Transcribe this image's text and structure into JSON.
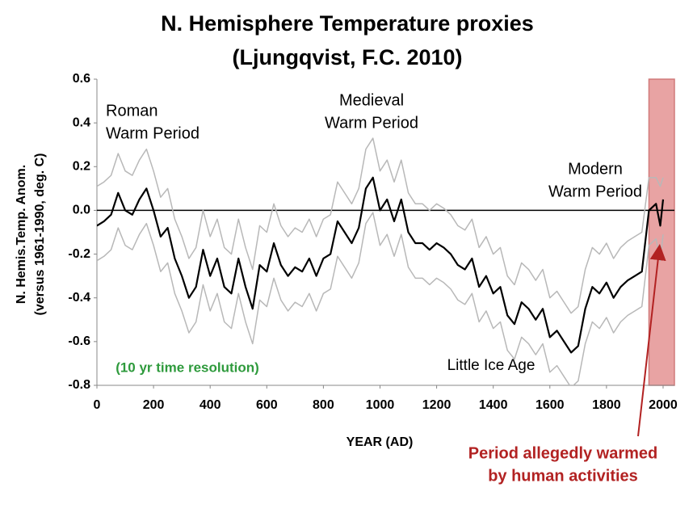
{
  "chart_data": {
    "type": "line",
    "title": [
      "N. Hemisphere Temperature proxies",
      "(Ljungqvist, F.C.  2010)"
    ],
    "x_label": "YEAR (AD)",
    "y_label": [
      "N. Hemis.Temp. Anom.",
      "(versus 1961-1990, deg. C)"
    ],
    "x": [
      0,
      25,
      50,
      75,
      100,
      125,
      150,
      175,
      200,
      225,
      250,
      275,
      300,
      325,
      350,
      375,
      400,
      425,
      450,
      475,
      500,
      525,
      550,
      575,
      600,
      625,
      650,
      675,
      700,
      725,
      750,
      775,
      800,
      825,
      850,
      875,
      900,
      925,
      950,
      975,
      1000,
      1025,
      1050,
      1075,
      1100,
      1125,
      1150,
      1175,
      1200,
      1225,
      1250,
      1275,
      1300,
      1325,
      1350,
      1375,
      1400,
      1425,
      1450,
      1475,
      1500,
      1525,
      1550,
      1575,
      1600,
      1625,
      1650,
      1675,
      1700,
      1725,
      1750,
      1775,
      1800,
      1825,
      1850,
      1875,
      1900,
      1925,
      1950,
      1975,
      1990,
      2000
    ],
    "series": [
      {
        "color": "#b8b8b8",
        "values": [
          0.11,
          0.13,
          0.16,
          0.26,
          0.18,
          0.16,
          0.23,
          0.28,
          0.18,
          0.06,
          0.1,
          -0.04,
          -0.12,
          -0.22,
          -0.17,
          0.0,
          -0.12,
          -0.04,
          -0.17,
          -0.2,
          -0.04,
          -0.17,
          -0.27,
          -0.07,
          -0.1,
          0.03,
          -0.07,
          -0.12,
          -0.08,
          -0.1,
          -0.04,
          -0.12,
          -0.04,
          -0.02,
          0.13,
          0.08,
          0.03,
          0.1,
          0.28,
          0.33,
          0.18,
          0.23,
          0.13,
          0.23,
          0.08,
          0.03,
          0.03,
          0.0,
          0.03,
          0.01,
          -0.02,
          -0.07,
          -0.09,
          -0.04,
          -0.17,
          -0.12,
          -0.2,
          -0.17,
          -0.3,
          -0.34,
          -0.24,
          -0.27,
          -0.32,
          -0.27,
          -0.4,
          -0.37,
          -0.42,
          -0.47,
          -0.44,
          -0.27,
          -0.17,
          -0.2,
          -0.15,
          -0.22,
          -0.17,
          -0.14,
          -0.12,
          -0.1,
          0.15,
          0.15,
          0.11,
          0.15
        ]
      },
      {
        "color": "#b8b8b8",
        "values": [
          -0.23,
          -0.21,
          -0.18,
          -0.08,
          -0.16,
          -0.18,
          -0.11,
          -0.06,
          -0.16,
          -0.28,
          -0.24,
          -0.38,
          -0.46,
          -0.56,
          -0.51,
          -0.34,
          -0.46,
          -0.38,
          -0.51,
          -0.54,
          -0.38,
          -0.51,
          -0.61,
          -0.41,
          -0.44,
          -0.31,
          -0.41,
          -0.46,
          -0.42,
          -0.44,
          -0.38,
          -0.46,
          -0.38,
          -0.36,
          -0.21,
          -0.26,
          -0.31,
          -0.24,
          -0.06,
          -0.01,
          -0.16,
          -0.11,
          -0.21,
          -0.11,
          -0.26,
          -0.31,
          -0.31,
          -0.34,
          -0.31,
          -0.33,
          -0.36,
          -0.41,
          -0.43,
          -0.38,
          -0.51,
          -0.46,
          -0.54,
          -0.51,
          -0.64,
          -0.68,
          -0.58,
          -0.61,
          -0.66,
          -0.61,
          -0.74,
          -0.71,
          -0.76,
          -0.81,
          -0.78,
          -0.61,
          -0.51,
          -0.54,
          -0.49,
          -0.56,
          -0.51,
          -0.48,
          -0.46,
          -0.44,
          -0.16,
          -0.13,
          -0.23,
          -0.11
        ]
      },
      {
        "color": "#000000",
        "values": [
          -0.07,
          -0.05,
          -0.02,
          0.08,
          0.0,
          -0.02,
          0.05,
          0.1,
          0.0,
          -0.12,
          -0.08,
          -0.22,
          -0.3,
          -0.4,
          -0.35,
          -0.18,
          -0.3,
          -0.22,
          -0.35,
          -0.38,
          -0.22,
          -0.35,
          -0.45,
          -0.25,
          -0.28,
          -0.15,
          -0.25,
          -0.3,
          -0.26,
          -0.28,
          -0.22,
          -0.3,
          -0.22,
          -0.2,
          -0.05,
          -0.1,
          -0.15,
          -0.08,
          0.1,
          0.15,
          0.0,
          0.05,
          -0.05,
          0.05,
          -0.1,
          -0.15,
          -0.15,
          -0.18,
          -0.15,
          -0.17,
          -0.2,
          -0.25,
          -0.27,
          -0.22,
          -0.35,
          -0.3,
          -0.38,
          -0.35,
          -0.48,
          -0.52,
          -0.42,
          -0.45,
          -0.5,
          -0.45,
          -0.58,
          -0.55,
          -0.6,
          -0.65,
          -0.62,
          -0.45,
          -0.35,
          -0.38,
          -0.33,
          -0.4,
          -0.35,
          -0.32,
          -0.3,
          -0.28,
          0.0,
          0.03,
          -0.07,
          0.05
        ]
      }
    ],
    "xlim": [
      0,
      2040
    ],
    "xticks": [
      0,
      200,
      400,
      600,
      800,
      1000,
      1200,
      1400,
      1600,
      1800,
      2000
    ],
    "ylim": [
      -0.8,
      0.6
    ],
    "yticks": [
      0.6,
      0.4,
      0.2,
      {
        "value": 0,
        "label": "0.0"
      },
      -0.2,
      -0.4,
      -0.6,
      -0.8
    ],
    "zero_line": true,
    "highlight": {
      "range": [
        1950,
        2040
      ],
      "color": "#e8a3a3"
    },
    "annotations": [
      {
        "lines": [
          "Roman",
          "Warm Period"
        ],
        "color": "#000000"
      },
      {
        "lines": [
          "Medieval",
          "Warm Period"
        ],
        "color": "#000000"
      },
      {
        "lines": [
          "Modern",
          "Warm Period"
        ],
        "color": "#000000"
      },
      {
        "lines": [
          "Little Ice Age"
        ],
        "color": "#000000"
      },
      {
        "lines": [
          "(10 yr time resolution)"
        ],
        "color": "#2e9a3c"
      },
      {
        "lines": [
          "Period allegedly warmed",
          "by human activities"
        ],
        "color": "#b22222"
      }
    ]
  }
}
